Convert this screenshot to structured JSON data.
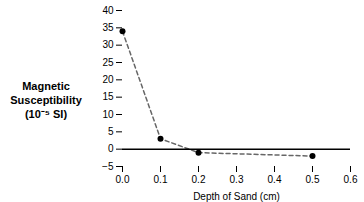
{
  "chart_data": {
    "type": "line",
    "x": [
      0,
      0.1,
      0.2,
      0.5
    ],
    "values": [
      34,
      3,
      -1,
      -2
    ],
    "xlabel": "Depth of Sand (cm)",
    "ylabel": "Magnetic\nSusceptibility\n(10⁻⁵ SI)",
    "xlim": [
      0,
      0.6
    ],
    "ylim": [
      -5,
      40
    ],
    "xticks": [
      {
        "value": 0,
        "label": "0.0"
      },
      0.1,
      0.2,
      0.3,
      0.4,
      0.5,
      0.6
    ],
    "yticks": [
      -5,
      0,
      5,
      10,
      15,
      20,
      25,
      30,
      35,
      40
    ],
    "grid": false,
    "marker": "circle",
    "line_style": "dashed",
    "hline": 0
  }
}
